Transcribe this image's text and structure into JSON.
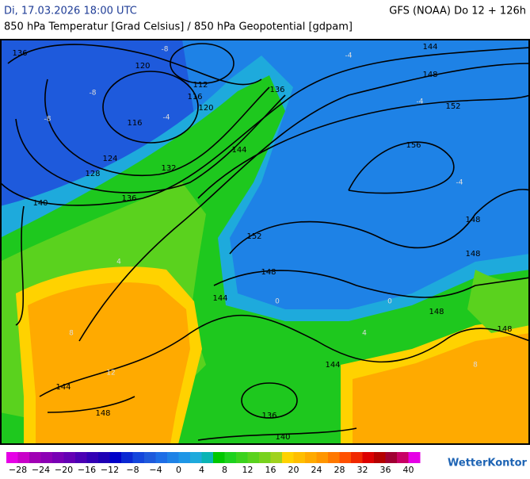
{
  "header": {
    "datetime": "Di, 17.03.2026 18:00 UTC",
    "model": "GFS (NOAA) Do 12 + 126h",
    "subtitle": "850 hPa Temperatur [Grad Celsius] / 850 hPa Geopotential [gdpam]"
  },
  "contour_labels": [
    "136",
    "120",
    "112",
    "116",
    "120",
    "136",
    "144",
    "148",
    "152",
    "156",
    "116",
    "124",
    "128",
    "132",
    "144",
    "136",
    "140",
    "152",
    "148",
    "148",
    "148",
    "144",
    "148",
    "148",
    "144",
    "144",
    "148",
    "136",
    "140"
  ],
  "temperature_labels": [
    "-8",
    "-8",
    "-4",
    "-4",
    "-4",
    "-8",
    "-4",
    "0",
    "0",
    "4",
    "4",
    "8",
    "8",
    "12"
  ],
  "colorbar": {
    "colors": [
      "#e600e6",
      "#c800c8",
      "#a000b4",
      "#8c00b4",
      "#7800b4",
      "#6400b4",
      "#4b00b4",
      "#3200b4",
      "#1e00b4",
      "#0000c8",
      "#0a28d2",
      "#1446dc",
      "#1e5adc",
      "#1e6ee6",
      "#1e82e6",
      "#1e96e6",
      "#1eaadc",
      "#0ab4b4",
      "#00c800",
      "#1ed21e",
      "#3cd21e",
      "#5ad21e",
      "#78d21e",
      "#a0d21e",
      "#ffd200",
      "#ffbe00",
      "#ffaa00",
      "#ff9600",
      "#ff7800",
      "#ff5000",
      "#f02800",
      "#dc0000",
      "#b40000",
      "#a00032",
      "#c80064",
      "#e600e6"
    ],
    "labels": [
      "−28",
      "−24",
      "−20",
      "−16",
      "−12",
      "−8",
      "−4",
      "0",
      "4",
      "8",
      "12",
      "16",
      "20",
      "24",
      "28",
      "32",
      "36",
      "40"
    ]
  },
  "logo": "WetterKontor"
}
